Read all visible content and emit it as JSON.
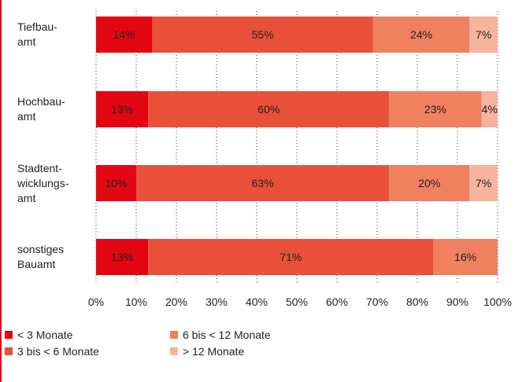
{
  "page": {
    "accent_rule_color": "#e30613"
  },
  "chart_data": {
    "type": "bar",
    "orientation": "horizontal",
    "stacked": true,
    "categories": [
      "Tiefbau-\namt",
      "Hochbau-\namt",
      "Stadtent-\nwicklungs-\namt",
      "sonstiges\nBauamt"
    ],
    "series": [
      {
        "name": "< 3 Monate",
        "color": "#e30613",
        "values": [
          14,
          13,
          10,
          13
        ],
        "labels": [
          "14%",
          "13%",
          "10%",
          "13%"
        ]
      },
      {
        "name": "3 bis < 6 Monate",
        "color": "#e9503a",
        "values": [
          55,
          60,
          63,
          71
        ],
        "labels": [
          "55%",
          "60%",
          "63%",
          "71%"
        ]
      },
      {
        "name": "6 bis < 12 Monate",
        "color": "#ef8060",
        "values": [
          24,
          23,
          20,
          16
        ],
        "labels": [
          "24%",
          "23%",
          "20%",
          "16%"
        ]
      },
      {
        "name": "> 12 Monate",
        "color": "#f6b49c",
        "values": [
          7,
          4,
          7,
          0
        ],
        "labels": [
          "7%",
          "4%",
          "7%",
          ""
        ]
      }
    ],
    "xlim": [
      0,
      100
    ],
    "x_ticks": [
      0,
      10,
      20,
      30,
      40,
      50,
      60,
      70,
      80,
      90,
      100
    ],
    "x_tick_labels": [
      "0%",
      "10%",
      "20%",
      "30%",
      "40%",
      "50%",
      "60%",
      "70%",
      "80%",
      "90%",
      "100%"
    ],
    "grid": "vertical dotted",
    "legend_position": "bottom-left",
    "legend_labels": [
      "< 3 Monate",
      "3 bis < 6 Monate",
      "6 bis < 12 Monate",
      "> 12 Monate"
    ],
    "title": "",
    "xlabel": "",
    "ylabel": ""
  }
}
